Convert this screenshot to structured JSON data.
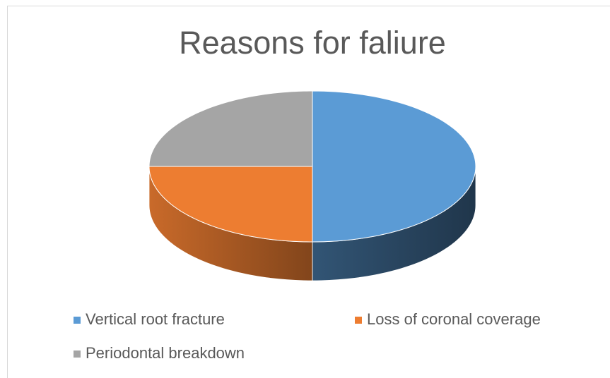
{
  "chart_data": {
    "type": "pie",
    "title": "Reasons for faliure",
    "categories": [
      "Vertical root fracture",
      "Loss of coronal coverage",
      "Periodontal breakdown"
    ],
    "values": [
      50,
      25,
      25
    ],
    "colors": [
      "#5b9bd5",
      "#ed7d31",
      "#a5a5a5"
    ]
  }
}
